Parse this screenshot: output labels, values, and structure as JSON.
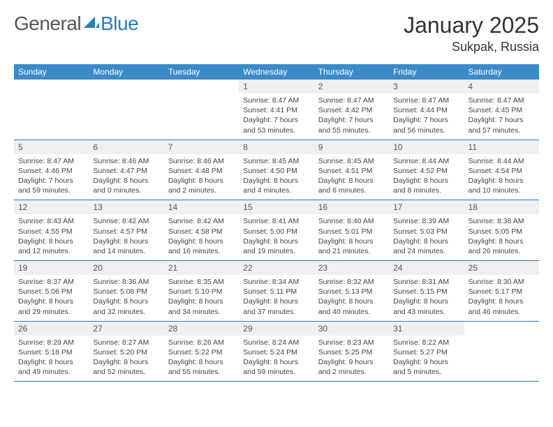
{
  "brand": {
    "part1": "General",
    "part2": "Blue"
  },
  "title": "January 2025",
  "location": "Sukpak, Russia",
  "colors": {
    "header_bg": "#3b8bc9",
    "header_text": "#ffffff",
    "daynum_bg": "#eef0f2",
    "border": "#2d7bc0",
    "brand_gray": "#555555",
    "brand_blue": "#2d7bc0"
  },
  "day_headers": [
    "Sunday",
    "Monday",
    "Tuesday",
    "Wednesday",
    "Thursday",
    "Friday",
    "Saturday"
  ],
  "weeks": [
    [
      {
        "n": "",
        "sr": "",
        "ss": "",
        "dl": ""
      },
      {
        "n": "",
        "sr": "",
        "ss": "",
        "dl": ""
      },
      {
        "n": "",
        "sr": "",
        "ss": "",
        "dl": ""
      },
      {
        "n": "1",
        "sr": "Sunrise: 8:47 AM",
        "ss": "Sunset: 4:41 PM",
        "dl": "Daylight: 7 hours and 53 minutes."
      },
      {
        "n": "2",
        "sr": "Sunrise: 8:47 AM",
        "ss": "Sunset: 4:42 PM",
        "dl": "Daylight: 7 hours and 55 minutes."
      },
      {
        "n": "3",
        "sr": "Sunrise: 8:47 AM",
        "ss": "Sunset: 4:44 PM",
        "dl": "Daylight: 7 hours and 56 minutes."
      },
      {
        "n": "4",
        "sr": "Sunrise: 8:47 AM",
        "ss": "Sunset: 4:45 PM",
        "dl": "Daylight: 7 hours and 57 minutes."
      }
    ],
    [
      {
        "n": "5",
        "sr": "Sunrise: 8:47 AM",
        "ss": "Sunset: 4:46 PM",
        "dl": "Daylight: 7 hours and 59 minutes."
      },
      {
        "n": "6",
        "sr": "Sunrise: 8:46 AM",
        "ss": "Sunset: 4:47 PM",
        "dl": "Daylight: 8 hours and 0 minutes."
      },
      {
        "n": "7",
        "sr": "Sunrise: 8:46 AM",
        "ss": "Sunset: 4:48 PM",
        "dl": "Daylight: 8 hours and 2 minutes."
      },
      {
        "n": "8",
        "sr": "Sunrise: 8:45 AM",
        "ss": "Sunset: 4:50 PM",
        "dl": "Daylight: 8 hours and 4 minutes."
      },
      {
        "n": "9",
        "sr": "Sunrise: 8:45 AM",
        "ss": "Sunset: 4:51 PM",
        "dl": "Daylight: 8 hours and 6 minutes."
      },
      {
        "n": "10",
        "sr": "Sunrise: 8:44 AM",
        "ss": "Sunset: 4:52 PM",
        "dl": "Daylight: 8 hours and 8 minutes."
      },
      {
        "n": "11",
        "sr": "Sunrise: 8:44 AM",
        "ss": "Sunset: 4:54 PM",
        "dl": "Daylight: 8 hours and 10 minutes."
      }
    ],
    [
      {
        "n": "12",
        "sr": "Sunrise: 8:43 AM",
        "ss": "Sunset: 4:55 PM",
        "dl": "Daylight: 8 hours and 12 minutes."
      },
      {
        "n": "13",
        "sr": "Sunrise: 8:42 AM",
        "ss": "Sunset: 4:57 PM",
        "dl": "Daylight: 8 hours and 14 minutes."
      },
      {
        "n": "14",
        "sr": "Sunrise: 8:42 AM",
        "ss": "Sunset: 4:58 PM",
        "dl": "Daylight: 8 hours and 16 minutes."
      },
      {
        "n": "15",
        "sr": "Sunrise: 8:41 AM",
        "ss": "Sunset: 5:00 PM",
        "dl": "Daylight: 8 hours and 19 minutes."
      },
      {
        "n": "16",
        "sr": "Sunrise: 8:40 AM",
        "ss": "Sunset: 5:01 PM",
        "dl": "Daylight: 8 hours and 21 minutes."
      },
      {
        "n": "17",
        "sr": "Sunrise: 8:39 AM",
        "ss": "Sunset: 5:03 PM",
        "dl": "Daylight: 8 hours and 24 minutes."
      },
      {
        "n": "18",
        "sr": "Sunrise: 8:38 AM",
        "ss": "Sunset: 5:05 PM",
        "dl": "Daylight: 8 hours and 26 minutes."
      }
    ],
    [
      {
        "n": "19",
        "sr": "Sunrise: 8:37 AM",
        "ss": "Sunset: 5:06 PM",
        "dl": "Daylight: 8 hours and 29 minutes."
      },
      {
        "n": "20",
        "sr": "Sunrise: 8:36 AM",
        "ss": "Sunset: 5:08 PM",
        "dl": "Daylight: 8 hours and 32 minutes."
      },
      {
        "n": "21",
        "sr": "Sunrise: 8:35 AM",
        "ss": "Sunset: 5:10 PM",
        "dl": "Daylight: 8 hours and 34 minutes."
      },
      {
        "n": "22",
        "sr": "Sunrise: 8:34 AM",
        "ss": "Sunset: 5:11 PM",
        "dl": "Daylight: 8 hours and 37 minutes."
      },
      {
        "n": "23",
        "sr": "Sunrise: 8:32 AM",
        "ss": "Sunset: 5:13 PM",
        "dl": "Daylight: 8 hours and 40 minutes."
      },
      {
        "n": "24",
        "sr": "Sunrise: 8:31 AM",
        "ss": "Sunset: 5:15 PM",
        "dl": "Daylight: 8 hours and 43 minutes."
      },
      {
        "n": "25",
        "sr": "Sunrise: 8:30 AM",
        "ss": "Sunset: 5:17 PM",
        "dl": "Daylight: 8 hours and 46 minutes."
      }
    ],
    [
      {
        "n": "26",
        "sr": "Sunrise: 8:29 AM",
        "ss": "Sunset: 5:18 PM",
        "dl": "Daylight: 8 hours and 49 minutes."
      },
      {
        "n": "27",
        "sr": "Sunrise: 8:27 AM",
        "ss": "Sunset: 5:20 PM",
        "dl": "Daylight: 8 hours and 52 minutes."
      },
      {
        "n": "28",
        "sr": "Sunrise: 8:26 AM",
        "ss": "Sunset: 5:22 PM",
        "dl": "Daylight: 8 hours and 55 minutes."
      },
      {
        "n": "29",
        "sr": "Sunrise: 8:24 AM",
        "ss": "Sunset: 5:24 PM",
        "dl": "Daylight: 8 hours and 59 minutes."
      },
      {
        "n": "30",
        "sr": "Sunrise: 8:23 AM",
        "ss": "Sunset: 5:25 PM",
        "dl": "Daylight: 9 hours and 2 minutes."
      },
      {
        "n": "31",
        "sr": "Sunrise: 8:22 AM",
        "ss": "Sunset: 5:27 PM",
        "dl": "Daylight: 9 hours and 5 minutes."
      },
      {
        "n": "",
        "sr": "",
        "ss": "",
        "dl": ""
      }
    ]
  ]
}
